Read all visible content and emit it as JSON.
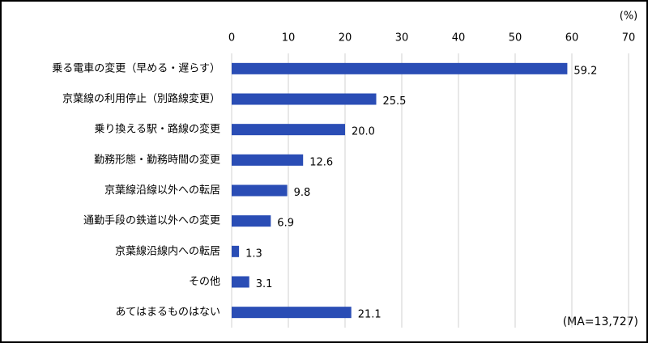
{
  "chart_data": {
    "type": "hbar",
    "unit_label": "(%)",
    "note": "(MA=13,727)",
    "categories": [
      "乗る電車の変更（早める・遅らす）",
      "京葉線の利用停止（別路線変更）",
      "乗り換える駅・路線の変更",
      "勤務形態・勤務時間の変更",
      "京葉線沿線以外への転居",
      "通勤手段の鉄道以外への変更",
      "京葉線沿線内への転居",
      "その他",
      "あてはまるものはない"
    ],
    "values": [
      59.2,
      25.5,
      20.0,
      12.6,
      9.8,
      6.9,
      1.3,
      3.1,
      21.1
    ],
    "value_labels": [
      "59.2",
      "25.5",
      "20.0",
      "12.6",
      "9.8",
      "6.9",
      "1.3",
      "3.1",
      "21.1"
    ],
    "color": "#2a4db5",
    "xlim": [
      0,
      70
    ],
    "xticks": [
      0,
      10,
      20,
      30,
      40,
      50,
      60,
      70
    ],
    "grid": true
  }
}
